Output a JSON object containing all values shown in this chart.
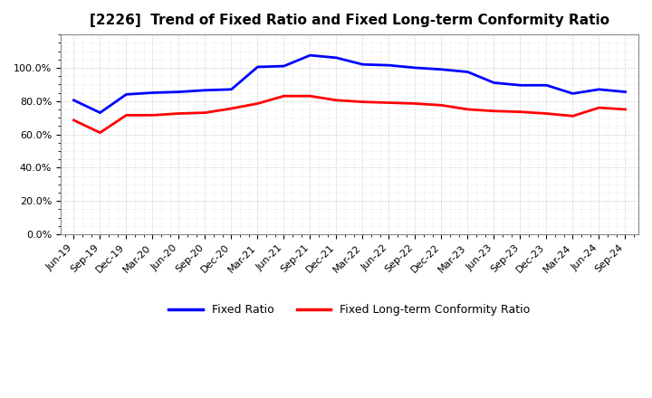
{
  "title": "[2226]  Trend of Fixed Ratio and Fixed Long-term Conformity Ratio",
  "labels": [
    "Jun-19",
    "Sep-19",
    "Dec-19",
    "Mar-20",
    "Jun-20",
    "Sep-20",
    "Dec-20",
    "Mar-21",
    "Jun-21",
    "Sep-21",
    "Dec-21",
    "Mar-22",
    "Jun-22",
    "Sep-22",
    "Dec-22",
    "Mar-23",
    "Jun-23",
    "Sep-23",
    "Dec-23",
    "Mar-24",
    "Jun-24",
    "Sep-24"
  ],
  "fixed_ratio": [
    80.5,
    73.0,
    84.0,
    85.0,
    85.5,
    86.5,
    87.0,
    100.5,
    101.0,
    107.5,
    106.0,
    102.0,
    101.5,
    100.0,
    99.0,
    97.5,
    91.0,
    89.5,
    89.5,
    84.5,
    87.0,
    85.5
  ],
  "fixed_lt_ratio": [
    68.5,
    61.0,
    71.5,
    71.5,
    72.5,
    73.0,
    75.5,
    78.5,
    83.0,
    83.0,
    80.5,
    79.5,
    79.0,
    78.5,
    77.5,
    75.0,
    74.0,
    73.5,
    72.5,
    71.0,
    76.0,
    75.0
  ],
  "fixed_ratio_color": "#0000FF",
  "fixed_lt_ratio_color": "#FF0000",
  "ylim": [
    0,
    120
  ],
  "yticks": [
    0,
    20,
    40,
    60,
    80,
    100
  ],
  "legend_fixed_ratio": "Fixed Ratio",
  "legend_fixed_lt_ratio": "Fixed Long-term Conformity Ratio",
  "bg_color": "#FFFFFF",
  "plot_bg_color": "#FFFFFF",
  "grid_color": "#AAAAAA",
  "title_color": "#000000",
  "line_width": 2.0,
  "title_fontsize": 11,
  "tick_fontsize": 8,
  "legend_fontsize": 9
}
